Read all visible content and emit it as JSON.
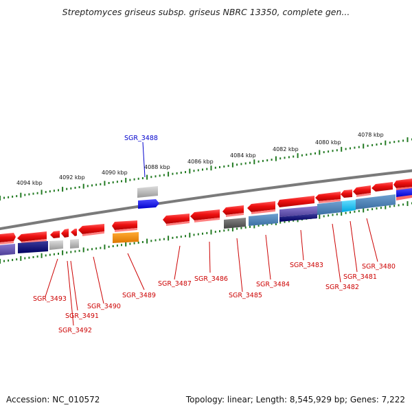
{
  "title": "Streptomyces griseus subsp. griseus NBRC 13350, complete gen...",
  "footer": {
    "accession": "Accession: NC_010572",
    "summary": "Topology: linear; Length: 8,545,929 bp; Genes: 7,222"
  },
  "colors": {
    "backbone": "#808080",
    "tick": "#227a22",
    "forward_gene": "#ee1111",
    "label_red": "#cc0000",
    "label_blue": "#0000cc"
  },
  "axis": {
    "ticks": [
      {
        "label": "4094 kbp"
      },
      {
        "label": "4092 kbp"
      },
      {
        "label": "4090 kbp"
      },
      {
        "label": "4088 kbp"
      },
      {
        "label": "4086 kbp"
      },
      {
        "label": "4084 kbp"
      },
      {
        "label": "4082 kbp"
      },
      {
        "label": "4080 kbp"
      },
      {
        "label": "4078 kbp"
      }
    ]
  },
  "gene_labels": [
    {
      "name": "SGR_3488",
      "color": "blue"
    },
    {
      "name": "SGR_3493",
      "color": "red"
    },
    {
      "name": "SGR_3491",
      "color": "red"
    },
    {
      "name": "SGR_3492",
      "color": "red"
    },
    {
      "name": "SGR_3490",
      "color": "red"
    },
    {
      "name": "SGR_3489",
      "color": "red"
    },
    {
      "name": "SGR_3487",
      "color": "red"
    },
    {
      "name": "SGR_3486",
      "color": "red"
    },
    {
      "name": "SGR_3485",
      "color": "red"
    },
    {
      "name": "SGR_3484",
      "color": "red"
    },
    {
      "name": "SGR_3483",
      "color": "red"
    },
    {
      "name": "SGR_3482",
      "color": "red"
    },
    {
      "name": "SGR_3481",
      "color": "red"
    },
    {
      "name": "SGR_3480",
      "color": "red"
    }
  ]
}
